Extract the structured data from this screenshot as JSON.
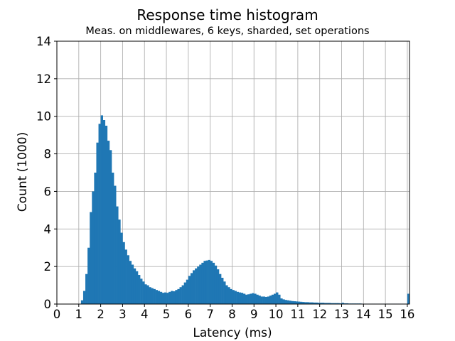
{
  "chart_data": {
    "type": "bar",
    "title": "Response time histogram",
    "subtitle": "Meas. on middlewares, 6 keys, sharded, set operations",
    "xlabel": "Latency (ms)",
    "ylabel": "Count (1000)",
    "xlim": [
      0,
      16.1
    ],
    "ylim": [
      0,
      14
    ],
    "xticks": [
      0,
      1,
      2,
      3,
      4,
      5,
      6,
      7,
      8,
      9,
      10,
      11,
      12,
      13,
      14,
      15,
      16
    ],
    "yticks": [
      0,
      2,
      4,
      6,
      8,
      10,
      12,
      14
    ],
    "grid": true,
    "color": "#1f77b4",
    "bin_width": 0.1,
    "bins": [
      [
        1.1,
        0.2
      ],
      [
        1.2,
        0.7
      ],
      [
        1.3,
        1.6
      ],
      [
        1.4,
        3.0
      ],
      [
        1.5,
        4.9
      ],
      [
        1.6,
        6.0
      ],
      [
        1.7,
        7.0
      ],
      [
        1.8,
        8.6
      ],
      [
        1.9,
        9.6
      ],
      [
        2.0,
        10.05
      ],
      [
        2.1,
        9.8
      ],
      [
        2.2,
        9.5
      ],
      [
        2.3,
        8.7
      ],
      [
        2.4,
        8.2
      ],
      [
        2.5,
        7.0
      ],
      [
        2.6,
        6.3
      ],
      [
        2.7,
        5.2
      ],
      [
        2.8,
        4.5
      ],
      [
        2.9,
        3.8
      ],
      [
        3.0,
        3.3
      ],
      [
        3.1,
        2.9
      ],
      [
        3.2,
        2.6
      ],
      [
        3.3,
        2.3
      ],
      [
        3.4,
        2.1
      ],
      [
        3.5,
        1.9
      ],
      [
        3.6,
        1.75
      ],
      [
        3.7,
        1.55
      ],
      [
        3.8,
        1.35
      ],
      [
        3.9,
        1.2
      ],
      [
        4.0,
        1.05
      ],
      [
        4.1,
        1.0
      ],
      [
        4.2,
        0.9
      ],
      [
        4.3,
        0.85
      ],
      [
        4.4,
        0.8
      ],
      [
        4.5,
        0.75
      ],
      [
        4.6,
        0.7
      ],
      [
        4.7,
        0.65
      ],
      [
        4.8,
        0.6
      ],
      [
        4.9,
        0.62
      ],
      [
        5.0,
        0.6
      ],
      [
        5.1,
        0.65
      ],
      [
        5.2,
        0.7
      ],
      [
        5.3,
        0.68
      ],
      [
        5.4,
        0.75
      ],
      [
        5.5,
        0.8
      ],
      [
        5.6,
        0.9
      ],
      [
        5.7,
        1.0
      ],
      [
        5.8,
        1.15
      ],
      [
        5.9,
        1.3
      ],
      [
        6.0,
        1.5
      ],
      [
        6.1,
        1.65
      ],
      [
        6.2,
        1.8
      ],
      [
        6.3,
        1.9
      ],
      [
        6.4,
        2.0
      ],
      [
        6.5,
        2.1
      ],
      [
        6.6,
        2.2
      ],
      [
        6.7,
        2.3
      ],
      [
        6.8,
        2.32
      ],
      [
        6.9,
        2.35
      ],
      [
        7.0,
        2.3
      ],
      [
        7.1,
        2.2
      ],
      [
        7.2,
        2.05
      ],
      [
        7.3,
        1.85
      ],
      [
        7.4,
        1.6
      ],
      [
        7.5,
        1.4
      ],
      [
        7.6,
        1.2
      ],
      [
        7.7,
        1.0
      ],
      [
        7.8,
        0.9
      ],
      [
        7.9,
        0.8
      ],
      [
        8.0,
        0.75
      ],
      [
        8.1,
        0.7
      ],
      [
        8.2,
        0.65
      ],
      [
        8.3,
        0.62
      ],
      [
        8.4,
        0.6
      ],
      [
        8.5,
        0.55
      ],
      [
        8.6,
        0.5
      ],
      [
        8.7,
        0.52
      ],
      [
        8.8,
        0.55
      ],
      [
        8.9,
        0.58
      ],
      [
        9.0,
        0.55
      ],
      [
        9.1,
        0.5
      ],
      [
        9.2,
        0.45
      ],
      [
        9.3,
        0.4
      ],
      [
        9.4,
        0.4
      ],
      [
        9.5,
        0.38
      ],
      [
        9.6,
        0.4
      ],
      [
        9.7,
        0.45
      ],
      [
        9.8,
        0.5
      ],
      [
        9.9,
        0.55
      ],
      [
        10.0,
        0.62
      ],
      [
        10.1,
        0.5
      ],
      [
        10.2,
        0.3
      ],
      [
        10.3,
        0.25
      ],
      [
        10.4,
        0.22
      ],
      [
        10.5,
        0.2
      ],
      [
        10.6,
        0.18
      ],
      [
        10.7,
        0.16
      ],
      [
        10.8,
        0.15
      ],
      [
        10.9,
        0.14
      ],
      [
        11.0,
        0.13
      ],
      [
        11.1,
        0.12
      ],
      [
        11.2,
        0.11
      ],
      [
        11.3,
        0.1
      ],
      [
        11.4,
        0.1
      ],
      [
        11.5,
        0.09
      ],
      [
        11.6,
        0.09
      ],
      [
        11.7,
        0.08
      ],
      [
        11.8,
        0.08
      ],
      [
        11.9,
        0.07
      ],
      [
        12.0,
        0.07
      ],
      [
        12.1,
        0.07
      ],
      [
        12.2,
        0.06
      ],
      [
        12.3,
        0.06
      ],
      [
        12.4,
        0.06
      ],
      [
        12.5,
        0.05
      ],
      [
        12.6,
        0.05
      ],
      [
        12.7,
        0.05
      ],
      [
        12.8,
        0.05
      ],
      [
        12.9,
        0.04
      ],
      [
        13.0,
        0.07
      ],
      [
        13.1,
        0.04
      ],
      [
        13.2,
        0.04
      ],
      [
        13.3,
        0.03
      ],
      [
        13.4,
        0.03
      ],
      [
        13.5,
        0.03
      ],
      [
        13.6,
        0.03
      ],
      [
        13.7,
        0.03
      ],
      [
        13.8,
        0.03
      ],
      [
        13.9,
        0.02
      ],
      [
        14.0,
        0.02
      ],
      [
        14.1,
        0.02
      ],
      [
        14.2,
        0.02
      ],
      [
        14.3,
        0.02
      ],
      [
        14.4,
        0.02
      ],
      [
        14.5,
        0.02
      ],
      [
        14.6,
        0.02
      ],
      [
        14.7,
        0.02
      ],
      [
        14.8,
        0.02
      ],
      [
        14.9,
        0.02
      ],
      [
        15.0,
        0.02
      ],
      [
        15.1,
        0.02
      ],
      [
        15.2,
        0.02
      ],
      [
        15.3,
        0.02
      ],
      [
        15.4,
        0.02
      ],
      [
        15.5,
        0.02
      ],
      [
        15.6,
        0.02
      ],
      [
        15.7,
        0.02
      ],
      [
        15.8,
        0.02
      ],
      [
        15.9,
        0.02
      ],
      [
        16.0,
        0.55
      ]
    ]
  }
}
